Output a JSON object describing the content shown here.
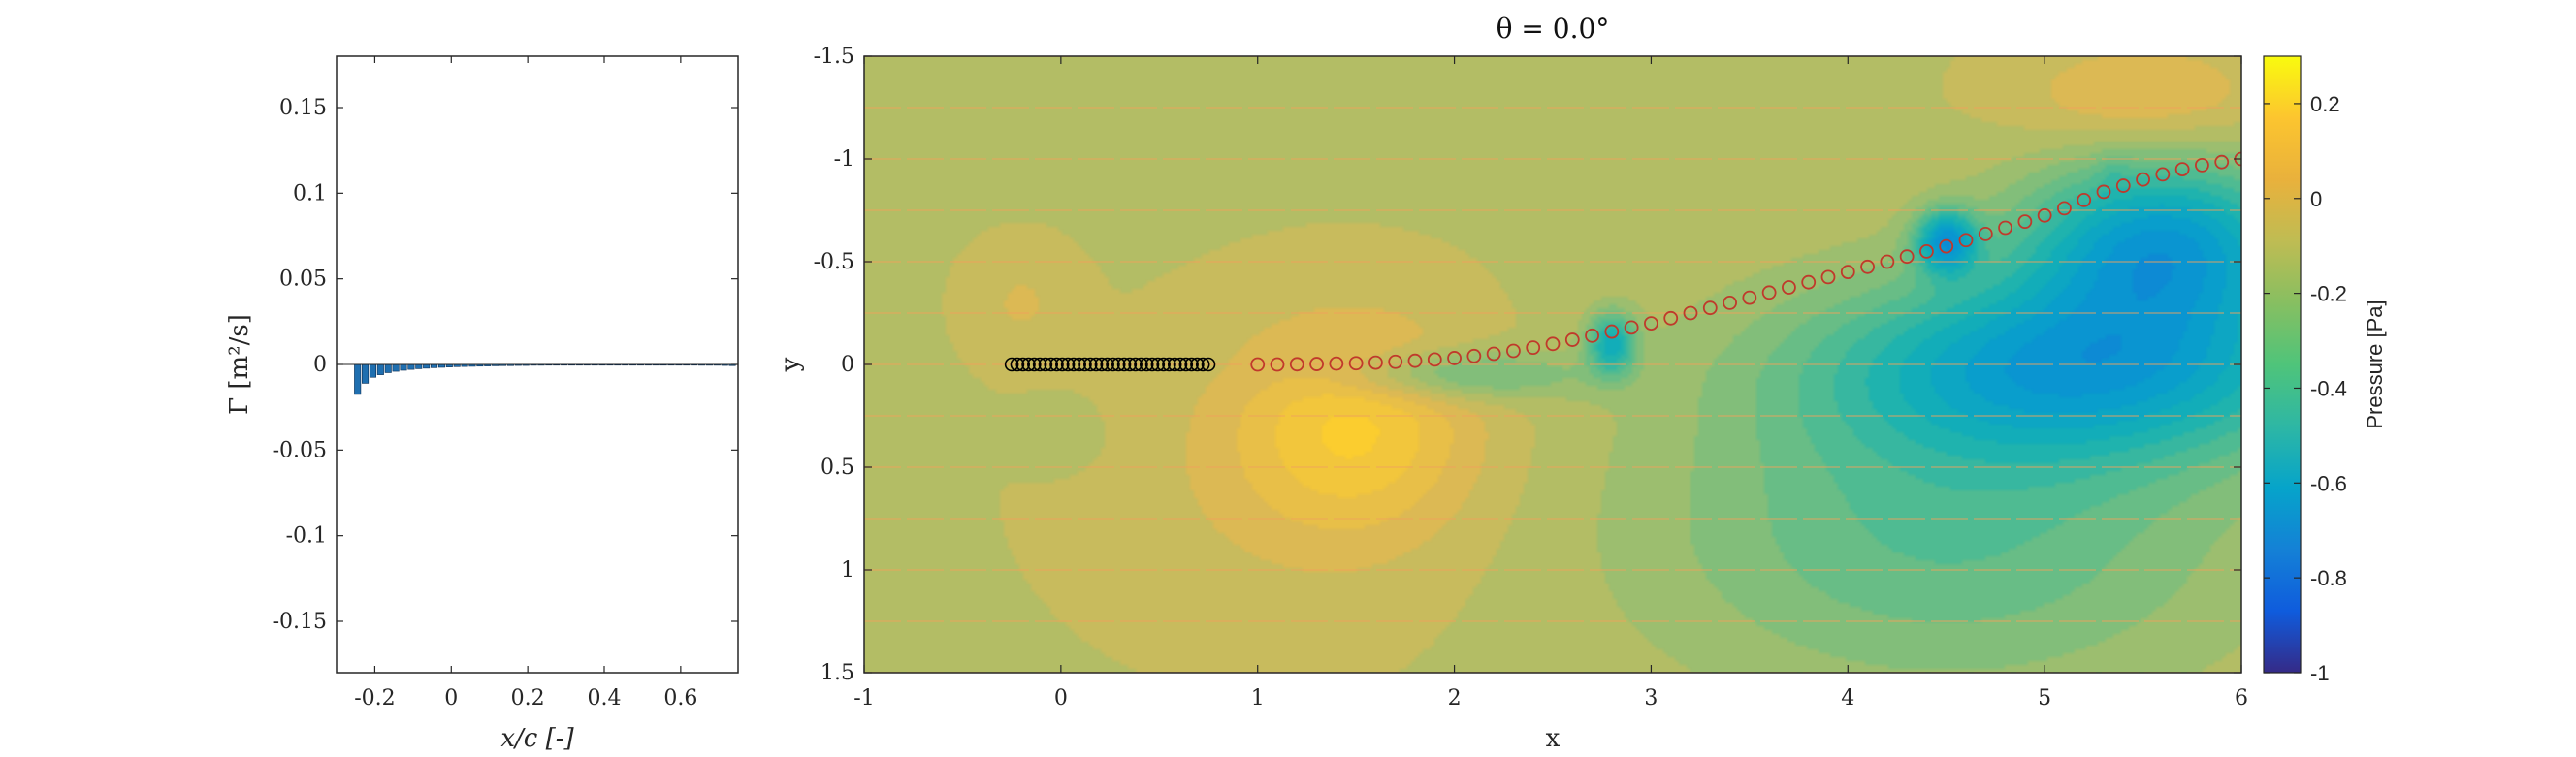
{
  "chart_data": [
    {
      "type": "bar",
      "xlabel": "x/c [-]",
      "ylabel": "Γ [m²/s]",
      "xlim": [
        -0.3,
        0.75
      ],
      "ylim": [
        -0.18,
        0.18
      ],
      "xticks": [
        "-0.2",
        "0",
        "0.2",
        "0.4",
        "0.6"
      ],
      "yticks": [
        "0.15",
        "0.1",
        "0.05",
        "0",
        "-0.05",
        "-0.1",
        "-0.15"
      ],
      "grid": false,
      "bar_color": "#1f6fb0",
      "x": [
        -0.245,
        -0.225,
        -0.205,
        -0.185,
        -0.165,
        -0.145,
        -0.125,
        -0.105,
        -0.085,
        -0.065,
        -0.045,
        -0.025,
        -0.005,
        0.015,
        0.035,
        0.055,
        0.075,
        0.095,
        0.115,
        0.135,
        0.155,
        0.175,
        0.195,
        0.215,
        0.235,
        0.255,
        0.275,
        0.295,
        0.315,
        0.335,
        0.355,
        0.375,
        0.395,
        0.415,
        0.435,
        0.455,
        0.475,
        0.495,
        0.515,
        0.535,
        0.555,
        0.575,
        0.595,
        0.615,
        0.635,
        0.655,
        0.675,
        0.695,
        0.715,
        0.735
      ],
      "values": [
        -0.0175,
        -0.011,
        -0.0075,
        -0.006,
        -0.0048,
        -0.004,
        -0.0034,
        -0.0029,
        -0.0025,
        -0.0022,
        -0.0019,
        -0.0017,
        -0.0015,
        -0.0013,
        -0.0012,
        -0.0011,
        -0.001,
        -0.0009,
        -0.0008,
        -0.0007,
        -0.0007,
        -0.0006,
        -0.0006,
        -0.0005,
        -0.0005,
        -0.0004,
        -0.0004,
        -0.0004,
        -0.0003,
        -0.0003,
        -0.0003,
        -0.0003,
        -0.0002,
        -0.0004,
        -0.0004,
        -0.0004,
        -0.0004,
        -0.0004,
        -0.0004,
        -0.0004,
        -0.0004,
        -0.0004,
        -0.0004,
        -0.0004,
        -0.0004,
        -0.0005,
        -0.0005,
        -0.0005,
        -0.0006,
        -0.0007
      ]
    },
    {
      "type": "heatmap",
      "title": "θ = 0.0°",
      "xlabel": "x",
      "ylabel": "y",
      "xlim": [
        -1,
        6
      ],
      "ylim": [
        -1.5,
        1.5
      ],
      "y_reversed": true,
      "xticks": [
        "-1",
        "0",
        "1",
        "2",
        "3",
        "4",
        "5",
        "6"
      ],
      "yticks": [
        "-1.5",
        "-1",
        "-0.5",
        "0",
        "0.5",
        "1",
        "1.5"
      ],
      "colorbar": {
        "label": "Pressure [Pa]",
        "range": [
          -1,
          0.3
        ],
        "ticks": [
          "0.2",
          "0",
          "-0.2",
          "-0.4",
          "-0.6",
          "-0.8",
          "-1"
        ],
        "colormap": "parula"
      },
      "airfoil_panels": {
        "marker": "circle",
        "color": "#000000",
        "x_start": -0.25,
        "x_end": 0.75,
        "y": 0,
        "count": 36
      },
      "wake_points": {
        "marker": "circle",
        "color": "#c0392b",
        "x": [
          1.0,
          1.1,
          1.2,
          1.3,
          1.4,
          1.5,
          1.6,
          1.7,
          1.8,
          1.9,
          2.0,
          2.1,
          2.2,
          2.3,
          2.4,
          2.5,
          2.6,
          2.7,
          2.8,
          2.9,
          3.0,
          3.1,
          3.2,
          3.3,
          3.4,
          3.5,
          3.6,
          3.7,
          3.8,
          3.9,
          4.0,
          4.1,
          4.2,
          4.3,
          4.4,
          4.5,
          4.6,
          4.7,
          4.8,
          4.9,
          5.0,
          5.1,
          5.2,
          5.3,
          5.4,
          5.5,
          5.6,
          5.7,
          5.8,
          5.9,
          6.0
        ],
        "y": [
          0.0,
          0.0,
          -0.001,
          -0.002,
          -0.004,
          -0.006,
          -0.009,
          -0.013,
          -0.018,
          -0.024,
          -0.031,
          -0.041,
          -0.052,
          -0.066,
          -0.082,
          -0.1,
          -0.12,
          -0.14,
          -0.16,
          -0.18,
          -0.2,
          -0.225,
          -0.25,
          -0.275,
          -0.3,
          -0.325,
          -0.35,
          -0.375,
          -0.4,
          -0.425,
          -0.45,
          -0.475,
          -0.5,
          -0.525,
          -0.55,
          -0.575,
          -0.605,
          -0.635,
          -0.665,
          -0.695,
          -0.725,
          -0.76,
          -0.8,
          -0.84,
          -0.87,
          -0.9,
          -0.925,
          -0.95,
          -0.97,
          -0.985,
          -1.0
        ]
      },
      "pressure_features": [
        {
          "x": 1.5,
          "y": 0.3,
          "p": 0.18,
          "sx": 0.6,
          "sy": 0.5
        },
        {
          "x": 1.2,
          "y": 0.6,
          "p": 0.05,
          "sx": 1.0,
          "sy": 0.7
        },
        {
          "x": 0.0,
          "y": 0.35,
          "p": -0.05,
          "sx": 0.2,
          "sy": 0.15
        },
        {
          "x": -0.2,
          "y": -0.3,
          "p": 0.06,
          "sx": 0.25,
          "sy": 0.25
        },
        {
          "x": 2.0,
          "y": 0.05,
          "p": -0.2,
          "sx": 0.6,
          "sy": 0.12
        },
        {
          "x": 2.8,
          "y": -0.1,
          "p": -0.35,
          "sx": 0.12,
          "sy": 0.15
        },
        {
          "x": 5.2,
          "y": 0.0,
          "p": -0.45,
          "sx": 1.3,
          "sy": 0.45
        },
        {
          "x": 5.6,
          "y": -0.6,
          "p": -0.45,
          "sx": 0.7,
          "sy": 0.4
        },
        {
          "x": 4.5,
          "y": -0.6,
          "p": -0.45,
          "sx": 0.15,
          "sy": 0.15
        },
        {
          "x": 5.5,
          "y": -1.3,
          "p": 0.12,
          "sx": 0.6,
          "sy": 0.25
        },
        {
          "x": 5.35,
          "y": -0.95,
          "p": -0.05,
          "sx": 0.08,
          "sy": 0.12
        },
        {
          "x": 4.5,
          "y": 0.8,
          "p": -0.2,
          "sx": 1.5,
          "sy": 0.8
        }
      ]
    }
  ]
}
